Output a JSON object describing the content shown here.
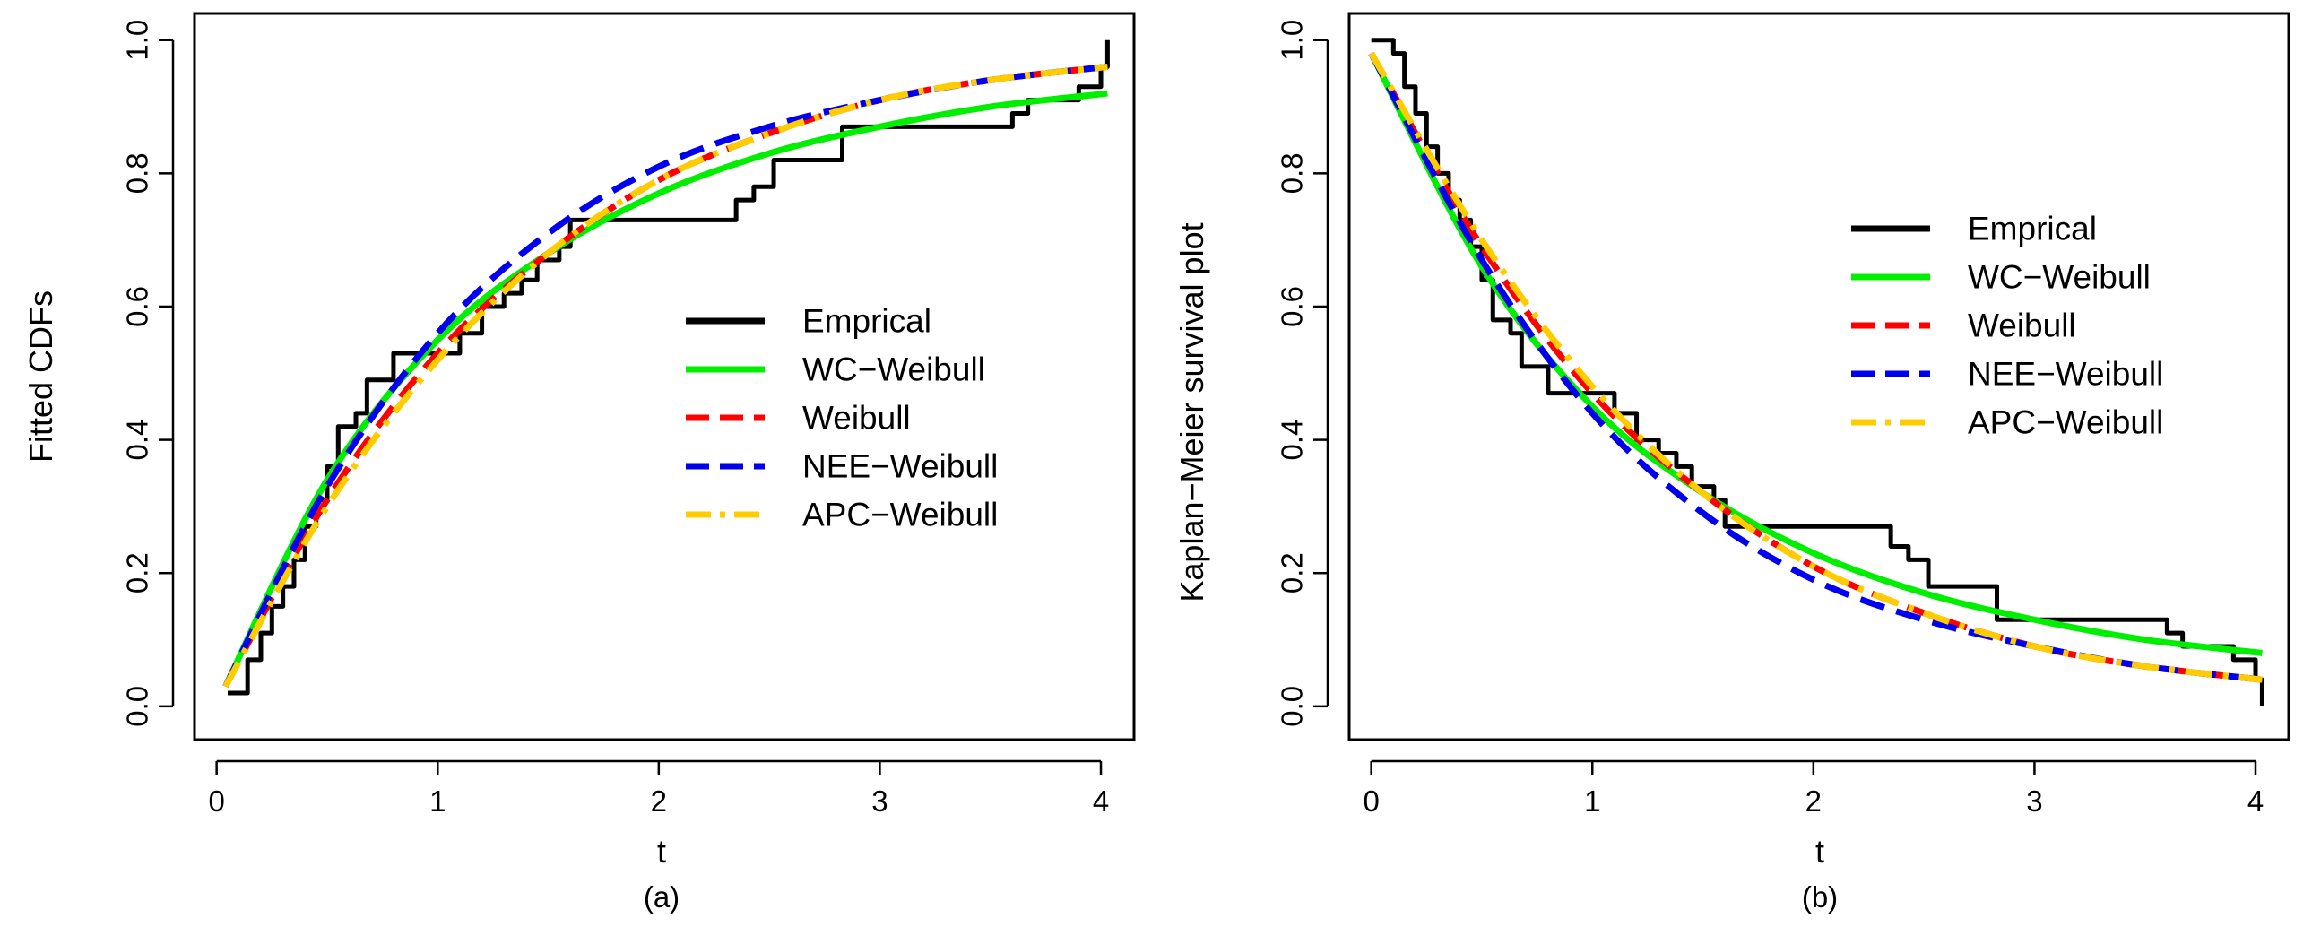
{
  "chart_data": [
    {
      "type": "line",
      "caption": "(a)",
      "xlabel": "t",
      "ylabel": "Fitted CDFs",
      "xlim": [
        -0.1,
        4.15
      ],
      "ylim": [
        -0.05,
        1.04
      ],
      "xticks": [
        0,
        1,
        2,
        3,
        4
      ],
      "yticks": [
        0.0,
        0.2,
        0.4,
        0.6,
        0.8,
        1.0
      ],
      "ytick_labels": [
        "0.0",
        "0.2",
        "0.4",
        "0.6",
        "0.8",
        "1.0"
      ],
      "legend_position": "center-right",
      "series": [
        {
          "name": "Emprical",
          "color": "#000000",
          "style": "step",
          "x": [
            0.05,
            0.12,
            0.14,
            0.2,
            0.25,
            0.3,
            0.35,
            0.4,
            0.45,
            0.5,
            0.55,
            0.63,
            0.68,
            0.8,
            1.0,
            1.1,
            1.2,
            1.3,
            1.38,
            1.45,
            1.55,
            1.6,
            2.17,
            2.35,
            2.43,
            2.52,
            2.83,
            3.6,
            3.67,
            3.9,
            4.0,
            4.03
          ],
          "y": [
            0.02,
            0.02,
            0.07,
            0.11,
            0.15,
            0.18,
            0.22,
            0.27,
            0.31,
            0.36,
            0.42,
            0.44,
            0.49,
            0.53,
            0.53,
            0.56,
            0.6,
            0.62,
            0.64,
            0.67,
            0.69,
            0.73,
            0.73,
            0.76,
            0.78,
            0.82,
            0.87,
            0.89,
            0.91,
            0.93,
            0.96,
            1.0
          ]
        },
        {
          "name": "WC−Weibull",
          "color": "#00ee00",
          "style": "solid",
          "x": [
            0.04,
            0.5,
            1.0,
            1.5,
            2.0,
            2.5,
            3.0,
            3.5,
            4.03
          ],
          "y": [
            0.03,
            0.34,
            0.55,
            0.68,
            0.77,
            0.83,
            0.87,
            0.9,
            0.92
          ]
        },
        {
          "name": "Weibull",
          "color": "#ff0000",
          "style": "dashed",
          "x": [
            0.04,
            0.5,
            1.0,
            1.5,
            2.0,
            2.5,
            3.0,
            3.5,
            4.03
          ],
          "y": [
            0.03,
            0.31,
            0.53,
            0.68,
            0.79,
            0.86,
            0.91,
            0.94,
            0.96
          ]
        },
        {
          "name": "NEE−Weibull",
          "color": "#0000ee",
          "style": "dashed",
          "x": [
            0.04,
            0.5,
            1.0,
            1.5,
            2.0,
            2.5,
            3.0,
            3.5,
            4.03
          ],
          "y": [
            0.03,
            0.33,
            0.56,
            0.71,
            0.81,
            0.87,
            0.91,
            0.94,
            0.96
          ]
        },
        {
          "name": "APC−Weibull",
          "color": "#ffcc00",
          "style": "dashdot",
          "x": [
            0.04,
            0.5,
            1.0,
            1.5,
            2.0,
            2.5,
            3.0,
            3.5,
            4.03
          ],
          "y": [
            0.03,
            0.3,
            0.52,
            0.68,
            0.79,
            0.86,
            0.91,
            0.94,
            0.96
          ]
        }
      ]
    },
    {
      "type": "line",
      "caption": "(b)",
      "xlabel": "t",
      "ylabel": "Kaplan−Meier survival plot",
      "xlim": [
        -0.1,
        4.15
      ],
      "ylim": [
        -0.05,
        1.04
      ],
      "xticks": [
        0,
        1,
        2,
        3,
        4
      ],
      "yticks": [
        0.0,
        0.2,
        0.4,
        0.6,
        0.8,
        1.0
      ],
      "ytick_labels": [
        "0.0",
        "0.2",
        "0.4",
        "0.6",
        "0.8",
        "1.0"
      ],
      "legend_position": "top-right",
      "series": [
        {
          "name": "Emprical",
          "color": "#000000",
          "style": "step",
          "x": [
            0.0,
            0.08,
            0.1,
            0.15,
            0.2,
            0.25,
            0.3,
            0.35,
            0.4,
            0.45,
            0.5,
            0.55,
            0.63,
            0.68,
            0.8,
            1.0,
            1.1,
            1.2,
            1.3,
            1.38,
            1.45,
            1.55,
            1.6,
            2.17,
            2.35,
            2.43,
            2.52,
            2.83,
            3.6,
            3.67,
            3.9,
            4.0,
            4.03
          ],
          "y": [
            1.0,
            1.0,
            0.98,
            0.93,
            0.89,
            0.84,
            0.8,
            0.76,
            0.73,
            0.69,
            0.64,
            0.58,
            0.56,
            0.51,
            0.47,
            0.47,
            0.44,
            0.4,
            0.38,
            0.36,
            0.33,
            0.31,
            0.27,
            0.27,
            0.24,
            0.22,
            0.18,
            0.13,
            0.11,
            0.09,
            0.07,
            0.04,
            0.0
          ]
        },
        {
          "name": "WC−Weibull",
          "color": "#00ee00",
          "style": "solid",
          "x": [
            0.0,
            0.5,
            1.0,
            1.5,
            2.0,
            2.5,
            3.0,
            3.5,
            4.03
          ],
          "y": [
            0.98,
            0.66,
            0.45,
            0.32,
            0.23,
            0.17,
            0.13,
            0.1,
            0.08
          ]
        },
        {
          "name": "Weibull",
          "color": "#ff0000",
          "style": "dashed",
          "x": [
            0.0,
            0.5,
            1.0,
            1.5,
            2.0,
            2.5,
            3.0,
            3.5,
            4.03
          ],
          "y": [
            0.98,
            0.69,
            0.47,
            0.32,
            0.21,
            0.14,
            0.09,
            0.06,
            0.04
          ]
        },
        {
          "name": "NEE−Weibull",
          "color": "#0000ee",
          "style": "dashed",
          "x": [
            0.0,
            0.5,
            1.0,
            1.5,
            2.0,
            2.5,
            3.0,
            3.5,
            4.03
          ],
          "y": [
            0.98,
            0.67,
            0.44,
            0.29,
            0.19,
            0.13,
            0.09,
            0.06,
            0.04
          ]
        },
        {
          "name": "APC−Weibull",
          "color": "#ffcc00",
          "style": "dashdot",
          "x": [
            0.0,
            0.5,
            1.0,
            1.5,
            2.0,
            2.5,
            3.0,
            3.5,
            4.03
          ],
          "y": [
            0.98,
            0.7,
            0.48,
            0.32,
            0.21,
            0.14,
            0.09,
            0.06,
            0.04
          ]
        }
      ]
    }
  ]
}
